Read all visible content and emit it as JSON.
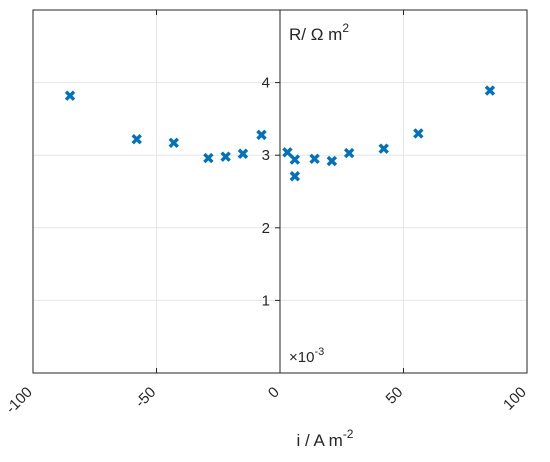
{
  "chart_data": {
    "type": "scatter",
    "title": "",
    "xlabel_main": "i / A m",
    "xlabel_sup": "-2",
    "ylabel_main": "R/ Ω m",
    "ylabel_sup": "2",
    "y_multiplier_main": "×10",
    "y_multiplier_sup": "-3",
    "xlim": [
      -100,
      100
    ],
    "ylim": [
      0,
      5
    ],
    "xticks": [
      -100,
      -50,
      0,
      50,
      100
    ],
    "xtick_labels": [
      "-100",
      "-50",
      "0",
      "50",
      "100"
    ],
    "yticks": [
      1,
      2,
      3,
      4
    ],
    "ytick_labels": [
      "1",
      "2",
      "3",
      "4"
    ],
    "grid": true,
    "y_axis_location": "origin",
    "marker": "x",
    "color": "#0072BD",
    "points": [
      {
        "x": -85,
        "y": 3.82
      },
      {
        "x": -58,
        "y": 3.22
      },
      {
        "x": -43,
        "y": 3.17
      },
      {
        "x": -29,
        "y": 2.96
      },
      {
        "x": -22,
        "y": 2.98
      },
      {
        "x": -15,
        "y": 3.02
      },
      {
        "x": -7.5,
        "y": 3.28
      },
      {
        "x": 3,
        "y": 3.04
      },
      {
        "x": 6,
        "y": 2.94
      },
      {
        "x": 6,
        "y": 2.71
      },
      {
        "x": 14,
        "y": 2.95
      },
      {
        "x": 21,
        "y": 2.92
      },
      {
        "x": 28,
        "y": 3.03
      },
      {
        "x": 42,
        "y": 3.09
      },
      {
        "x": 56,
        "y": 3.3
      },
      {
        "x": 85,
        "y": 3.89
      }
    ]
  }
}
